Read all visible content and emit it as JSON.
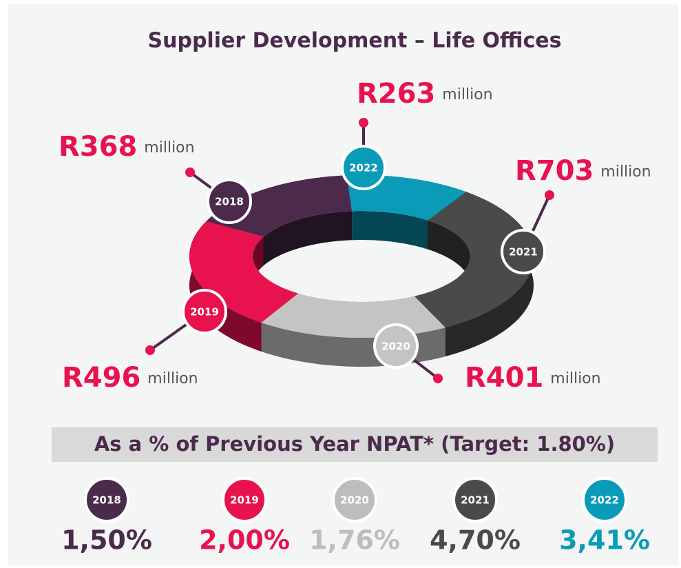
{
  "chart_data": {
    "type": "donut",
    "title": "Supplier Development – Life Offices",
    "categories": [
      "2018",
      "2019",
      "2020",
      "2021",
      "2022"
    ],
    "values": [
      368,
      496,
      401,
      703,
      263
    ],
    "value_labels": [
      "R368",
      "R496",
      "R401",
      "R703",
      "R263"
    ],
    "unit": "million",
    "colors": [
      "#4b2a4b",
      "#e8124f",
      "#c4c4c4",
      "#4a4a4a",
      "#0a9bb8"
    ]
  },
  "npat": {
    "title": "As a % of Previous Year NPAT* (Target: 1.80%)",
    "categories": [
      "2018",
      "2019",
      "2020",
      "2021",
      "2022"
    ],
    "values": [
      1.5,
      2.0,
      1.76,
      4.7,
      3.41
    ],
    "value_labels": [
      "1,50%",
      "2,00%",
      "1,76%",
      "4,70%",
      "3,41%"
    ],
    "colors": [
      "#4b2a4b",
      "#e8124f",
      "#bdbdbd",
      "#4a4a4a",
      "#0a9bb8"
    ]
  }
}
